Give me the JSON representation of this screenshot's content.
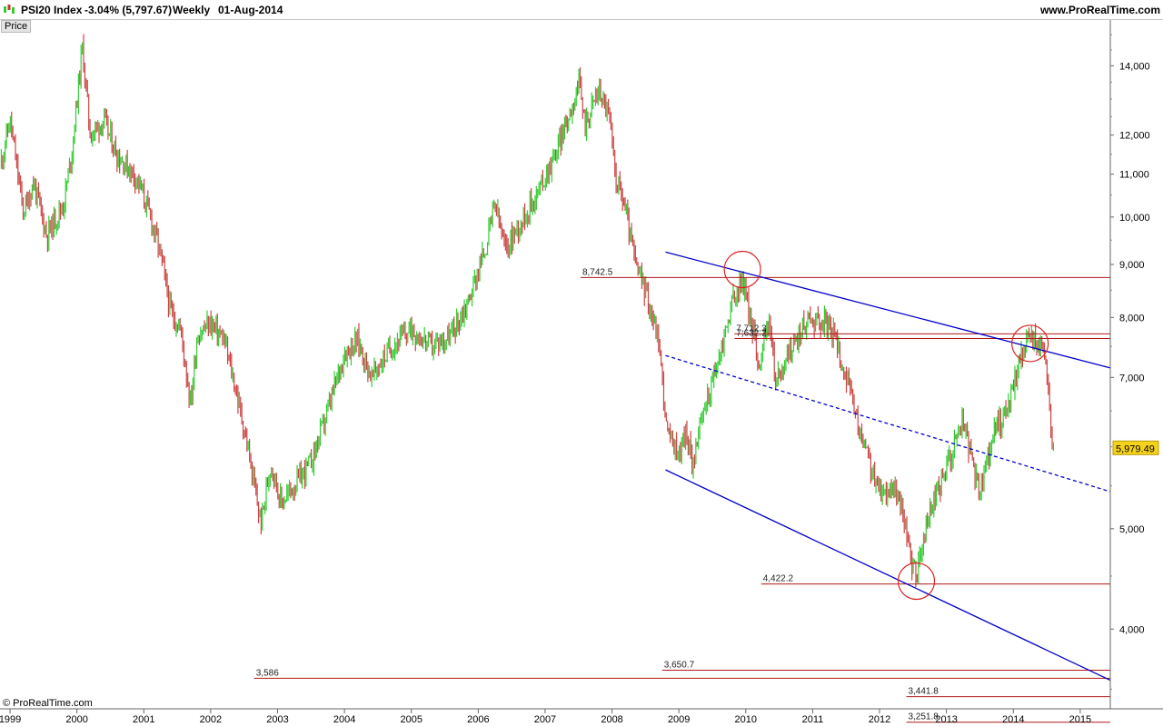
{
  "header": {
    "symbol": "PSI20 Index",
    "change": "-3.04% (5,797.67)",
    "period": "Weekly",
    "date": "01-Aug-2014",
    "website": "www.ProRealTime.com"
  },
  "price_tab": "Price",
  "copyright": "© ProRealTime.com",
  "colors": {
    "up": "#33cc33",
    "down": "#cc4444",
    "channel": "#0000cc",
    "level": "#b01818",
    "last_price_bg": "#f5d31b",
    "circle": "#dd2222"
  },
  "chart_data": {
    "type": "candlestick",
    "scale": "log",
    "x_range": [
      1998.85,
      2015.45
    ],
    "ylim": [
      3350,
      15500
    ],
    "x_tick_labels": [
      "1999",
      "2000",
      "2001",
      "2002",
      "2003",
      "2004",
      "2005",
      "2006",
      "2007",
      "2008",
      "2009",
      "2010",
      "2011",
      "2012",
      "2013",
      "2014",
      "2015"
    ],
    "y_tick_labels": [
      "4,000",
      "5,000",
      "7,000",
      "8,000",
      "9,000",
      "10,000",
      "11,000",
      "12,000",
      "14,000"
    ],
    "y_tick_values": [
      4000,
      5000,
      7000,
      8000,
      9000,
      10000,
      11000,
      12000,
      14000
    ],
    "last_price": 5979.49,
    "last_price_label": "5,979.49",
    "price_path": [
      [
        1998.85,
        11200
      ],
      [
        1999.0,
        12400
      ],
      [
        1999.2,
        10100
      ],
      [
        1999.35,
        10800
      ],
      [
        1999.55,
        9600
      ],
      [
        1999.8,
        10300
      ],
      [
        1999.92,
        11500
      ],
      [
        2000.08,
        14600
      ],
      [
        2000.2,
        12000
      ],
      [
        2000.4,
        12400
      ],
      [
        2000.6,
        11500
      ],
      [
        2000.9,
        10900
      ],
      [
        2001.1,
        10000
      ],
      [
        2001.25,
        9200
      ],
      [
        2001.4,
        8100
      ],
      [
        2001.55,
        7800
      ],
      [
        2001.7,
        6600
      ],
      [
        2001.8,
        7700
      ],
      [
        2002.0,
        7900
      ],
      [
        2002.2,
        7600
      ],
      [
        2002.4,
        6700
      ],
      [
        2002.55,
        6000
      ],
      [
        2002.75,
        5050
      ],
      [
        2002.9,
        5800
      ],
      [
        2003.05,
        5300
      ],
      [
        2003.25,
        5500
      ],
      [
        2003.5,
        5800
      ],
      [
        2003.75,
        6500
      ],
      [
        2004.0,
        7400
      ],
      [
        2004.2,
        7600
      ],
      [
        2004.4,
        7000
      ],
      [
        2004.7,
        7500
      ],
      [
        2005.0,
        7800
      ],
      [
        2005.3,
        7500
      ],
      [
        2005.6,
        7700
      ],
      [
        2005.85,
        8300
      ],
      [
        2006.1,
        9300
      ],
      [
        2006.25,
        10300
      ],
      [
        2006.4,
        9300
      ],
      [
        2006.6,
        9800
      ],
      [
        2006.9,
        10600
      ],
      [
        2007.15,
        11500
      ],
      [
        2007.35,
        12500
      ],
      [
        2007.5,
        13500
      ],
      [
        2007.6,
        12300
      ],
      [
        2007.8,
        13300
      ],
      [
        2007.95,
        12600
      ],
      [
        2008.05,
        11000
      ],
      [
        2008.2,
        10200
      ],
      [
        2008.35,
        9000
      ],
      [
        2008.5,
        8500
      ],
      [
        2008.7,
        7600
      ],
      [
        2008.82,
        6200
      ],
      [
        2009.0,
        5900
      ],
      [
        2009.1,
        6200
      ],
      [
        2009.2,
        5800
      ],
      [
        2009.4,
        6600
      ],
      [
        2009.6,
        7300
      ],
      [
        2009.8,
        8300
      ],
      [
        2009.95,
        8700
      ],
      [
        2010.1,
        7800
      ],
      [
        2010.2,
        7200
      ],
      [
        2010.35,
        8000
      ],
      [
        2010.45,
        6900
      ],
      [
        2010.6,
        7300
      ],
      [
        2010.8,
        7700
      ],
      [
        2010.95,
        8000
      ],
      [
        2011.2,
        7900
      ],
      [
        2011.35,
        7600
      ],
      [
        2011.5,
        7000
      ],
      [
        2011.7,
        6200
      ],
      [
        2011.85,
        5800
      ],
      [
        2012.0,
        5400
      ],
      [
        2012.2,
        5500
      ],
      [
        2012.35,
        5200
      ],
      [
        2012.45,
        4700
      ],
      [
        2012.55,
        4500
      ],
      [
        2012.75,
        5200
      ],
      [
        2012.95,
        5600
      ],
      [
        2013.1,
        6000
      ],
      [
        2013.25,
        6400
      ],
      [
        2013.4,
        5700
      ],
      [
        2013.5,
        5400
      ],
      [
        2013.7,
        6200
      ],
      [
        2013.9,
        6500
      ],
      [
        2014.1,
        7300
      ],
      [
        2014.25,
        7700
      ],
      [
        2014.4,
        7500
      ],
      [
        2014.5,
        7100
      ],
      [
        2014.57,
        6200
      ],
      [
        2014.6,
        5980
      ]
    ],
    "annotations": {
      "levels": [
        {
          "label": "8,742.5",
          "value": 8742.5,
          "x_from": 2007.53
        },
        {
          "label": "7,712.3",
          "value": 7712.3,
          "x_from": 2009.83
        },
        {
          "label": "7,632.2",
          "value": 7632.2,
          "x_from": 2009.83
        },
        {
          "label": "4,422.2",
          "value": 4422.2,
          "x_from": 2010.23
        },
        {
          "label": "3,650.7",
          "value": 3650.7,
          "x_from": 2008.75
        },
        {
          "label": "3,586",
          "value": 3586,
          "x_from": 2002.65
        },
        {
          "label": "3,441.8",
          "value": 3441.8,
          "x_from": 2012.4
        },
        {
          "label": "3,251.8",
          "value": 3251.8,
          "x_from": 2012.4
        }
      ],
      "channel_lines": [
        {
          "style": "solid",
          "points": [
            [
              2008.8,
              9250
            ],
            [
              2015.45,
              7150
            ]
          ]
        },
        {
          "style": "solid",
          "points": [
            [
              2008.8,
              5700
            ],
            [
              2015.45,
              3570
            ]
          ]
        },
        {
          "style": "dashed",
          "points": [
            [
              2008.8,
              7350
            ],
            [
              2015.45,
              5430
            ]
          ]
        }
      ],
      "circles": [
        {
          "x": 2009.95,
          "y": 8900
        },
        {
          "x": 2012.55,
          "y": 4450
        },
        {
          "x": 2014.25,
          "y": 7550
        }
      ]
    }
  }
}
